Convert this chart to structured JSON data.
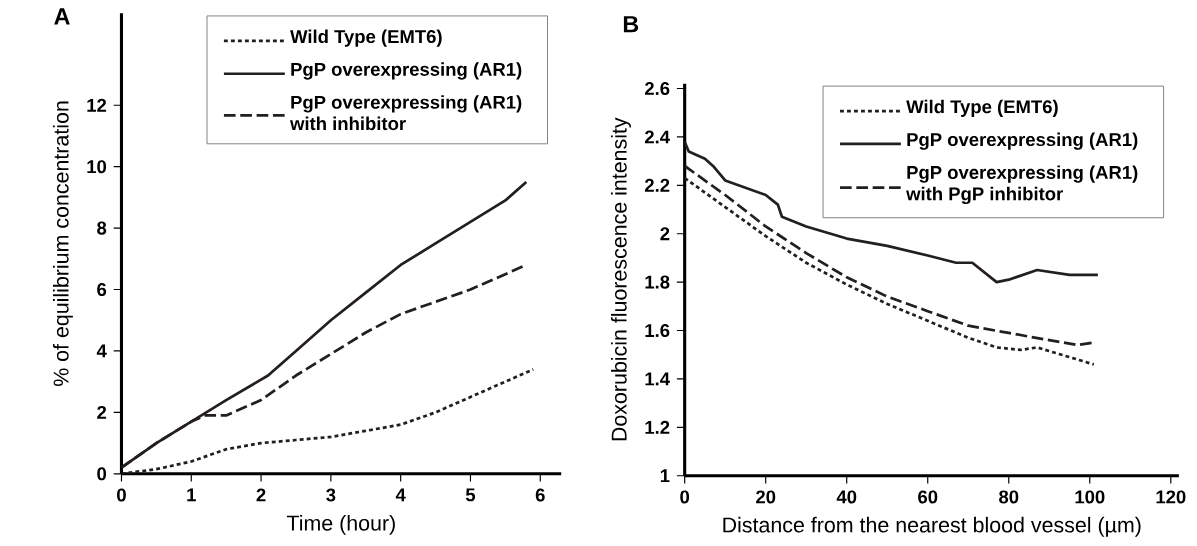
{
  "chart_data": [
    {
      "type": "line",
      "title": "A",
      "xlabel": "Time (hour)",
      "ylabel": "% of equilibrium concentration",
      "xlim": [
        0,
        6.3
      ],
      "ylim": [
        0,
        15
      ],
      "xticks": [
        0,
        1,
        2,
        3,
        4,
        5,
        6
      ],
      "yticks": [
        0,
        2,
        4,
        6,
        8,
        10,
        12
      ],
      "grid": false,
      "legend": "top right",
      "marker": "none",
      "series": [
        {
          "name": "Wild Type (EMT6)",
          "color": "#231f20",
          "line_style": "dotted",
          "x": [
            0,
            0.5,
            1,
            1.5,
            2,
            2.5,
            3,
            3.5,
            4,
            4.5,
            5,
            5.5,
            5.9
          ],
          "values": [
            0,
            0.15,
            0.4,
            0.8,
            1.0,
            1.1,
            1.2,
            1.4,
            1.6,
            2.0,
            2.5,
            3.0,
            3.4
          ]
        },
        {
          "name": "PgP overexpressing (AR1)",
          "color": "#231f20",
          "line_style": "solid",
          "x": [
            0,
            0.5,
            1,
            1.5,
            2.1,
            2.5,
            3,
            3.5,
            4,
            4.5,
            5,
            5.5,
            5.8
          ],
          "values": [
            0.2,
            1.0,
            1.7,
            2.4,
            3.2,
            4.0,
            5.0,
            5.9,
            6.8,
            7.5,
            8.2,
            8.9,
            9.5
          ]
        },
        {
          "name": "PgP overexpressing (AR1) with inhibitor",
          "color": "#231f20",
          "line_style": "dashed",
          "x": [
            0,
            0.5,
            1,
            1.2,
            1.5,
            2,
            2.5,
            3,
            3.5,
            4,
            4.5,
            5,
            5.8
          ],
          "values": [
            0.2,
            1.0,
            1.7,
            1.9,
            1.9,
            2.4,
            3.2,
            3.9,
            4.6,
            5.2,
            5.6,
            6.0,
            6.8
          ]
        }
      ]
    },
    {
      "type": "line",
      "title": "B",
      "xlabel": "Distance from the nearest blood vessel (µm)",
      "ylabel": "Doxorubicin fluorescence intensity",
      "xlim": [
        0,
        122
      ],
      "ylim": [
        1,
        2.62
      ],
      "xticks": [
        0,
        20,
        40,
        60,
        80,
        100,
        120
      ],
      "yticks": [
        1,
        1.2,
        1.4,
        1.6,
        1.8,
        2,
        2.2,
        2.4,
        2.6
      ],
      "grid": false,
      "legend": "top right",
      "marker": "none",
      "series": [
        {
          "name": "Wild Type (EMT6)",
          "color": "#231f20",
          "line_style": "dotted",
          "x": [
            0,
            10,
            20,
            30,
            40,
            50,
            60,
            70,
            77,
            83,
            87,
            95,
            101
          ],
          "values": [
            2.23,
            2.11,
            1.99,
            1.88,
            1.79,
            1.71,
            1.64,
            1.57,
            1.53,
            1.52,
            1.53,
            1.49,
            1.46
          ]
        },
        {
          "name": "PgP overexpressing (AR1)",
          "color": "#231f20",
          "line_style": "solid",
          "x": [
            0,
            1,
            5,
            7,
            10,
            15,
            20,
            23,
            24,
            30,
            40,
            50,
            60,
            67,
            71,
            74,
            77,
            80,
            87,
            95,
            102
          ],
          "values": [
            2.38,
            2.34,
            2.31,
            2.28,
            2.22,
            2.19,
            2.16,
            2.12,
            2.07,
            2.03,
            1.98,
            1.95,
            1.91,
            1.88,
            1.88,
            1.84,
            1.8,
            1.81,
            1.85,
            1.83,
            1.83
          ]
        },
        {
          "name": "PgP overexpressing (AR1) with PgP inhibitor",
          "color": "#231f20",
          "line_style": "dashed",
          "x": [
            0,
            10,
            20,
            30,
            40,
            50,
            60,
            70,
            80,
            90,
            97,
            101
          ],
          "values": [
            2.28,
            2.16,
            2.03,
            1.92,
            1.82,
            1.74,
            1.68,
            1.62,
            1.59,
            1.56,
            1.54,
            1.55
          ]
        }
      ]
    }
  ]
}
